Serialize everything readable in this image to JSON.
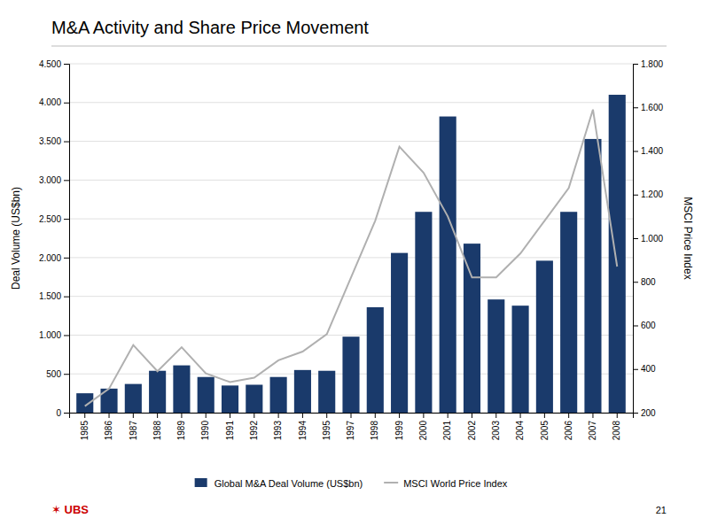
{
  "chart_data": {
    "type": "bar",
    "title": "M&A Activity and Share Price Movement",
    "categories": [
      "1985",
      "1986",
      "1987",
      "1988",
      "1989",
      "1990",
      "1991",
      "1992",
      "1993",
      "1994",
      "1995",
      "1997",
      "1998",
      "1999",
      "2000",
      "2001",
      "2002",
      "2003",
      "2004",
      "2005",
      "2006",
      "2007",
      "2008"
    ],
    "series": [
      {
        "name": "Global M&A Deal Volume (US$bn)",
        "type": "bar",
        "color": "#1a3a6b",
        "values": [
          250,
          310,
          370,
          540,
          610,
          460,
          350,
          360,
          460,
          550,
          540,
          980,
          1360,
          2060,
          2590,
          3820,
          2180,
          1460,
          1380,
          1960,
          2590,
          3530,
          4100
        ]
      },
      {
        "name": "MSCI World Price Index",
        "type": "line",
        "axis": "y2",
        "color": "#b0b0b0",
        "values": [
          230,
          310,
          510,
          390,
          500,
          380,
          340,
          360,
          440,
          480,
          560,
          820,
          1080,
          1420,
          1300,
          1100,
          820,
          820,
          930,
          1080,
          1230,
          1590,
          870
        ]
      }
    ],
    "ylabel": "Deal Volume (US$bn)",
    "y2label": "MSCI Price Index",
    "ylim": [
      0,
      4500
    ],
    "yticks": [
      0,
      500,
      {
        "value": 1000,
        "label": "1.000"
      },
      {
        "value": 1500,
        "label": "1.500"
      },
      {
        "value": 2000,
        "label": "2.000"
      },
      {
        "value": 2500,
        "label": "2.500"
      },
      {
        "value": 3000,
        "label": "3.000"
      },
      {
        "value": 3500,
        "label": "3.500"
      },
      {
        "value": 4000,
        "label": "4.000"
      },
      {
        "value": 4500,
        "label": "4.500"
      }
    ],
    "y2lim": [
      200,
      1800
    ],
    "y2ticks": [
      200,
      400,
      600,
      800,
      {
        "value": 1000,
        "label": "1.000"
      },
      {
        "value": 1200,
        "label": "1.200"
      },
      {
        "value": 1400,
        "label": "1.400"
      },
      {
        "value": 1600,
        "label": "1.600"
      },
      {
        "value": 1800,
        "label": "1.800"
      }
    ],
    "grid": true,
    "legend": "bottom",
    "annotations": [
      {
        "text": "✶ UBS",
        "color": "#cc0000"
      },
      {
        "text": "21"
      }
    ]
  }
}
